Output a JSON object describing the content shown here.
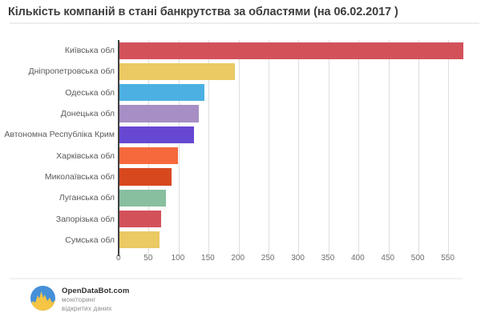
{
  "title": "Кількість компаній в стані банкрутства за областями (на 06.02.2017 )",
  "chart_data": {
    "type": "bar",
    "orientation": "horizontal",
    "title": "Кількість компаній в стані банкрутства за областями (на 06.02.2017 )",
    "categories": [
      "Київська обл",
      "Дніпропетровська обл",
      "Одеська обл",
      "Донецька обл",
      "Автономна Республіка Крим",
      "Харківська обл",
      "Миколаївська обл",
      "Луганська обл",
      "Запорізька обл",
      "Сумська обл"
    ],
    "values": [
      574,
      192,
      142,
      132,
      124,
      98,
      87,
      77,
      70,
      67
    ],
    "bar_colors": [
      "#d3525a",
      "#ebc963",
      "#4cb1e2",
      "#a78fc5",
      "#6748d3",
      "#f5693d",
      "#d8481f",
      "#88bf9f",
      "#d3525a",
      "#ebc963"
    ],
    "x_ticks": [
      0,
      50,
      100,
      150,
      200,
      250,
      300,
      350,
      400,
      450,
      500,
      550
    ],
    "xlim": [
      0,
      615
    ],
    "xlabel": "",
    "ylabel": "",
    "grid": true,
    "legend_position": "none"
  },
  "footer": {
    "brand": "OpenDataBot.com",
    "tagline_line1": "моніторинг",
    "tagline_line2": "відкритих даних"
  },
  "colors": {
    "axis": "#3f3f3f",
    "gridline": "#dedede",
    "title_text": "#3d3d3d",
    "label_text": "#595959",
    "logo_blue": "#4590d8",
    "logo_yellow": "#f6c544"
  }
}
